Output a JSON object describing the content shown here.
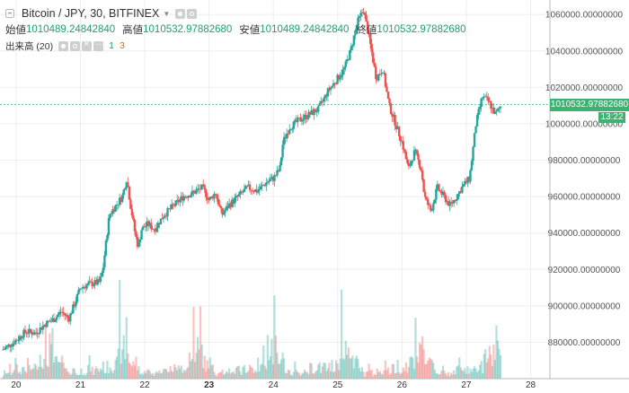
{
  "header": {
    "symbol": "Bitcoin / JPY, 30, BITFINEX",
    "ohlc": [
      {
        "label": "始値",
        "value": "1010489.24842840"
      },
      {
        "label": "高値",
        "value": "1010532.97882680"
      },
      {
        "label": "安値",
        "value": "1010489.24842840"
      },
      {
        "label": "終値",
        "value": "1010532.97882680"
      }
    ],
    "volume_label": "出来高 (20)",
    "volume_value": "1",
    "volume_ma": "3"
  },
  "price_tag": "1010532.97882680",
  "time_tag": "13:22",
  "colors": {
    "up": "#26a69a",
    "down": "#ef5350",
    "tag": "#3cb371"
  },
  "chart_data": {
    "type": "candlestick",
    "title": "Bitcoin / JPY, 30, BITFINEX",
    "y_ticks": [
      880000,
      900000,
      920000,
      940000,
      960000,
      980000,
      1000000,
      1020000,
      1040000,
      1060000
    ],
    "y_tick_labels": [
      "880000.00000000",
      "900000.00000000",
      "920000.00000000",
      "940000.00000000",
      "960000.00000000",
      "980000.00000000",
      "1000000.00000000",
      "1020000.00000000",
      "1040000.00000000",
      "1060000.00000000"
    ],
    "ylim": [
      860000,
      1068000
    ],
    "x_ticks": [
      "20",
      "21",
      "22",
      "23",
      "24",
      "25",
      "26",
      "27",
      "28"
    ],
    "x_tick_values": [
      0,
      1,
      2,
      3,
      4,
      5,
      6,
      7,
      8
    ],
    "xlim": [
      -0.25,
      8.3
    ],
    "last_price": 1010532.9788268,
    "grid": true,
    "series": [
      {
        "name": "Bitcoin / JPY",
        "points": [
          [
            -0.2,
            876000
          ],
          [
            0,
            881000
          ],
          [
            0.15,
            886000
          ],
          [
            0.3,
            885000
          ],
          [
            0.45,
            890000
          ],
          [
            0.6,
            893000
          ],
          [
            0.7,
            897000
          ],
          [
            0.82,
            893000
          ],
          [
            0.92,
            902000
          ],
          [
            1.0,
            910000
          ],
          [
            1.15,
            912000
          ],
          [
            1.3,
            913000
          ],
          [
            1.35,
            920000
          ],
          [
            1.45,
            950000
          ],
          [
            1.55,
            955000
          ],
          [
            1.65,
            960000
          ],
          [
            1.72,
            970000
          ],
          [
            1.78,
            955000
          ],
          [
            1.85,
            940000
          ],
          [
            1.9,
            932000
          ],
          [
            1.95,
            942000
          ],
          [
            2.05,
            945000
          ],
          [
            2.15,
            942000
          ],
          [
            2.3,
            950000
          ],
          [
            2.45,
            955000
          ],
          [
            2.6,
            960000
          ],
          [
            2.75,
            962000
          ],
          [
            2.9,
            965000
          ],
          [
            3.0,
            958000
          ],
          [
            3.1,
            962000
          ],
          [
            3.2,
            950000
          ],
          [
            3.3,
            955000
          ],
          [
            3.45,
            960000
          ],
          [
            3.6,
            965000
          ],
          [
            3.75,
            963000
          ],
          [
            3.9,
            968000
          ],
          [
            4.0,
            970000
          ],
          [
            4.1,
            975000
          ],
          [
            4.15,
            990000
          ],
          [
            4.25,
            998000
          ],
          [
            4.4,
            1002000
          ],
          [
            4.55,
            1005000
          ],
          [
            4.7,
            1008000
          ],
          [
            4.85,
            1018000
          ],
          [
            5.0,
            1025000
          ],
          [
            5.1,
            1030000
          ],
          [
            5.2,
            1040000
          ],
          [
            5.3,
            1055000
          ],
          [
            5.4,
            1063000
          ],
          [
            5.5,
            1045000
          ],
          [
            5.6,
            1025000
          ],
          [
            5.7,
            1030000
          ],
          [
            5.8,
            1010000
          ],
          [
            5.9,
            1000000
          ],
          [
            6.0,
            990000
          ],
          [
            6.1,
            975000
          ],
          [
            6.2,
            985000
          ],
          [
            6.3,
            975000
          ],
          [
            6.35,
            960000
          ],
          [
            6.45,
            952000
          ],
          [
            6.55,
            965000
          ],
          [
            6.65,
            960000
          ],
          [
            6.75,
            955000
          ],
          [
            6.85,
            960000
          ],
          [
            6.95,
            966000
          ],
          [
            7.05,
            970000
          ],
          [
            7.15,
            1000000
          ],
          [
            7.25,
            1015000
          ],
          [
            7.35,
            1012000
          ],
          [
            7.45,
            1005000
          ],
          [
            7.55,
            1010533
          ]
        ]
      }
    ],
    "volume": [
      2,
      3,
      2,
      4,
      3,
      5,
      3,
      4,
      6,
      8,
      5,
      4,
      3,
      4,
      5,
      6,
      4,
      5,
      7,
      6,
      5,
      4,
      6,
      5,
      7,
      6,
      5,
      9,
      12,
      8,
      10,
      35,
      14,
      10,
      18,
      12,
      30,
      15,
      10,
      8,
      6,
      7,
      9,
      8,
      6,
      5,
      4,
      3,
      2,
      3,
      5,
      6,
      4,
      3
    ]
  }
}
